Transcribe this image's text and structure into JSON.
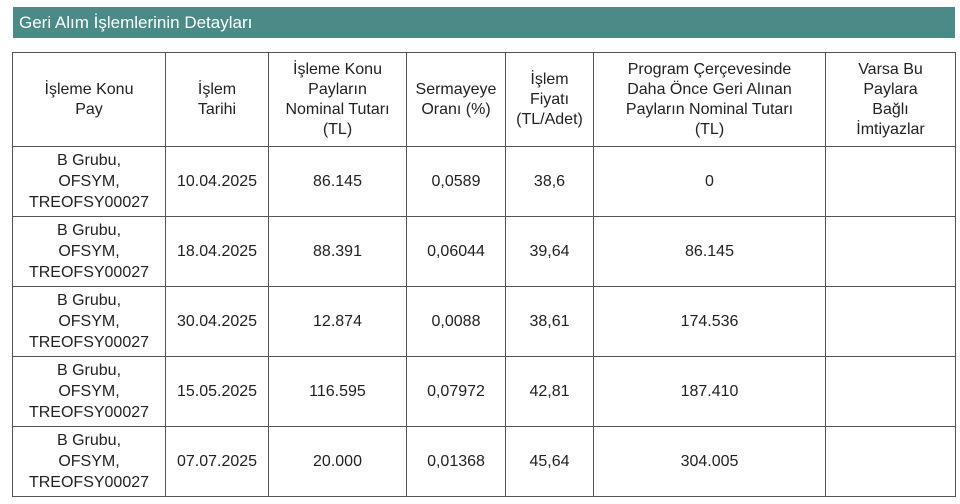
{
  "title": "Geri Alım İşlemlerinin Detayları",
  "columns": [
    "İşleme Konu\nPay",
    "İşlem\nTarihi",
    "İşleme Konu\nPayların\nNominal Tutarı\n(TL)",
    "Sermayeye\nOranı (%)",
    "İşlem\nFiyatı\n(TL/Adet)",
    "Program Çerçevesinde\nDaha Önce Geri Alınan\nPayların Nominal Tutarı\n(TL)",
    "Varsa Bu\nPaylara\nBağlı\nİmtiyazlar"
  ],
  "rows": [
    [
      "B Grubu,\nOFSYM,\nTREOFSY00027",
      "10.04.2025",
      "86.145",
      "0,0589",
      "38,6",
      "0",
      ""
    ],
    [
      "B Grubu,\nOFSYM,\nTREOFSY00027",
      "18.04.2025",
      "88.391",
      "0,06044",
      "39,64",
      "86.145",
      ""
    ],
    [
      "B Grubu,\nOFSYM,\nTREOFSY00027",
      "30.04.2025",
      "12.874",
      "0,0088",
      "38,61",
      "174.536",
      ""
    ],
    [
      "B Grubu,\nOFSYM,\nTREOFSY00027",
      "15.05.2025",
      "116.595",
      "0,07972",
      "42,81",
      "187.410",
      ""
    ],
    [
      "B Grubu,\nOFSYM,\nTREOFSY00027",
      "07.07.2025",
      "20.000",
      "0,01368",
      "45,64",
      "304.005",
      ""
    ]
  ]
}
